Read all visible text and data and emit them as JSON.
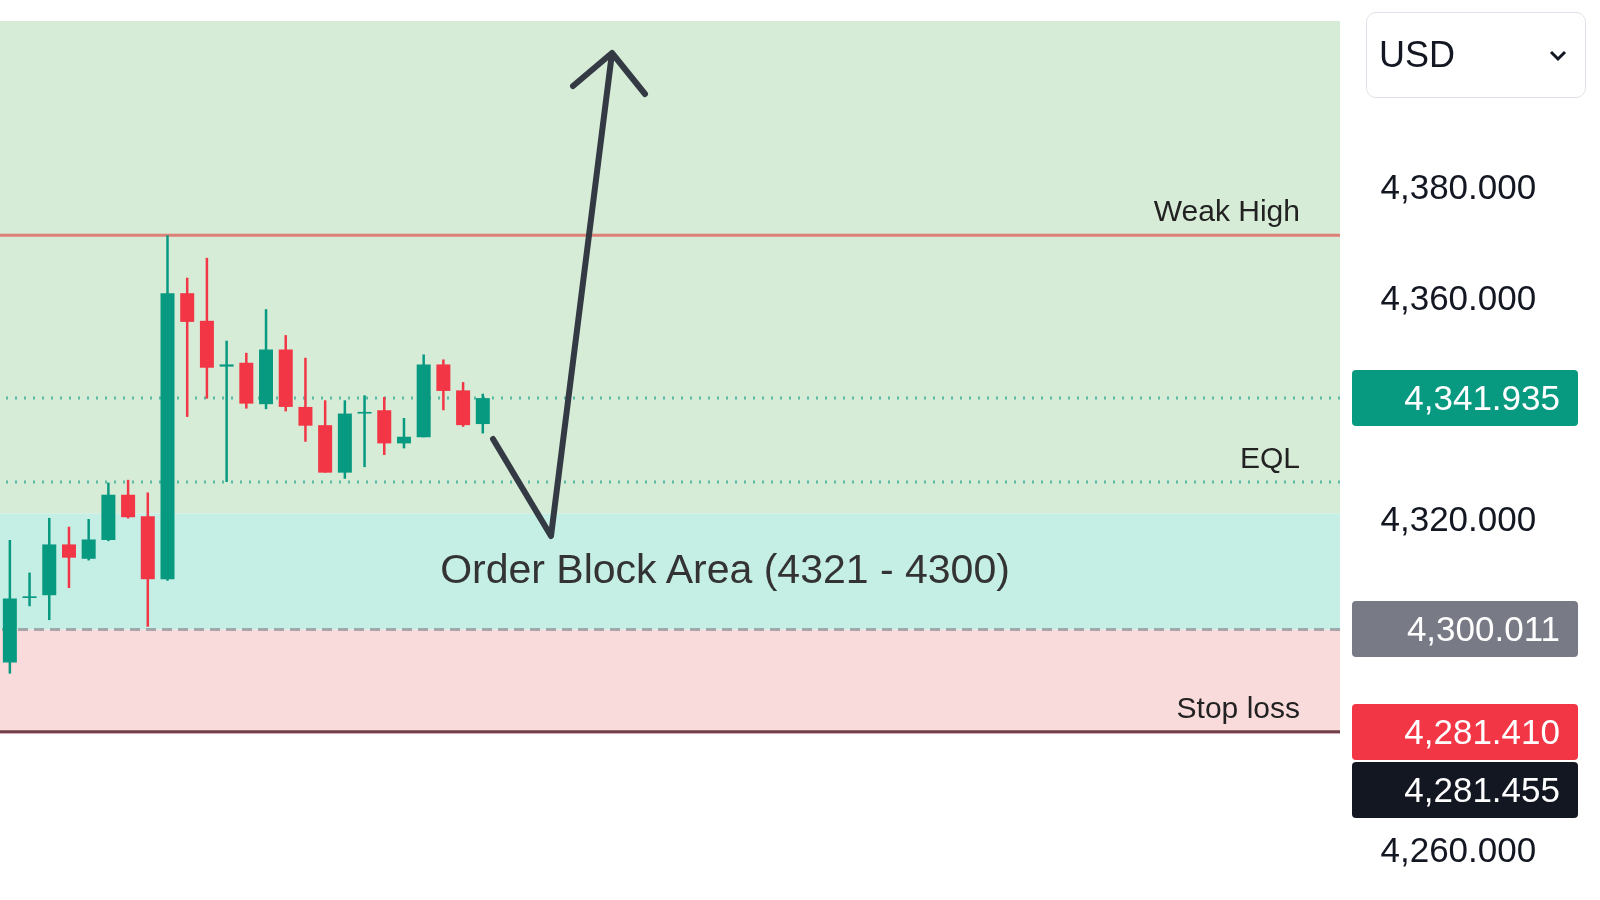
{
  "chart_data": {
    "type": "candlestick",
    "categories": [
      null,
      null,
      null,
      null,
      null,
      null,
      null,
      null,
      null,
      null,
      null,
      null,
      null,
      null,
      null,
      null,
      null,
      null,
      null,
      null,
      null,
      null,
      null,
      null,
      null,
      null,
      null,
      null,
      null,
      null,
      null,
      null,
      null,
      null,
      null,
      null,
      null,
      null,
      null,
      null,
      null,
      null,
      null,
      null,
      null,
      null,
      null,
      null,
      null,
      null,
      null,
      null,
      null,
      null,
      null,
      null,
      null,
      null,
      null,
      null,
      null,
      null,
      null,
      null,
      null,
      null,
      null,
      null
    ],
    "ohlc": [
      [
        4294.0,
        4316.2,
        4292.0,
        4305.6
      ],
      [
        4305.7,
        4310.3,
        4304.2,
        4306.0
      ],
      [
        4306.2,
        4320.2,
        4301.7,
        4315.4
      ],
      [
        4315.4,
        4318.6,
        4307.5,
        4313.0
      ],
      [
        4312.8,
        4320.0,
        4312.5,
        4316.3
      ],
      [
        4316.2,
        4326.6,
        4316.0,
        4324.4
      ],
      [
        4324.4,
        4327.1,
        4320.1,
        4320.3
      ],
      [
        4320.5,
        4324.8,
        4300.5,
        4309.1
      ],
      [
        4309.1,
        4371.4,
        4308.8,
        4360.9
      ],
      [
        4360.9,
        4363.7,
        4338.5,
        4355.7
      ],
      [
        4355.9,
        4367.3,
        4341.8,
        4347.4
      ],
      [
        4347.6,
        4352.3,
        4326.7,
        4348.0
      ],
      [
        4348.3,
        4350.1,
        4340.0,
        4340.9
      ],
      [
        4340.8,
        4358.0,
        4339.9,
        4350.7
      ],
      [
        4350.7,
        4353.3,
        4339.5,
        4340.3
      ],
      [
        4340.3,
        4349.2,
        4334.0,
        4336.9
      ],
      [
        4337.0,
        4341.5,
        4328.4,
        4328.4
      ],
      [
        4328.4,
        4341.5,
        4327.3,
        4339.1
      ],
      [
        4339.1,
        4342.4,
        4329.4,
        4339.4
      ],
      [
        4339.7,
        4342.1,
        4331.6,
        4333.7
      ],
      [
        4333.7,
        4338.3,
        4332.8,
        4334.9
      ],
      [
        4334.8,
        4349.8,
        4334.8,
        4348.0
      ],
      [
        4348.0,
        4348.9,
        4339.7,
        4343.2
      ],
      [
        4343.3,
        4344.8,
        4336.7,
        4337.0
      ],
      [
        4337.2,
        4342.7,
        4335.5,
        4341.9
      ],
      null,
      null,
      null,
      null,
      null,
      null,
      null,
      null,
      null,
      null,
      null,
      null,
      null,
      null,
      null,
      null,
      null,
      null,
      null,
      null,
      null,
      null,
      null,
      null,
      null,
      null,
      null,
      null,
      null,
      null,
      null,
      null,
      null,
      null,
      null,
      null,
      null,
      null,
      null,
      null,
      null,
      null,
      null
    ],
    "colors": [
      "#089981",
      "#089981",
      "#089981",
      "#f23645",
      "#089981",
      "#089981",
      "#f23645",
      "#f23645",
      "#089981",
      "#f23645",
      "#f23645",
      "#089981",
      "#f23645",
      "#089981",
      "#f23645",
      "#f23645",
      "#f23645",
      "#089981",
      "#089981",
      "#f23645",
      "#089981",
      "#089981",
      "#f23645",
      "#f23645",
      "#089981",
      null,
      null,
      null,
      null,
      null,
      null,
      null,
      null,
      null,
      null,
      null,
      null,
      null,
      null,
      null,
      null,
      null,
      null,
      null,
      null,
      null,
      null,
      null,
      null,
      null,
      null,
      null,
      null,
      null,
      null,
      null,
      null,
      null,
      null,
      null,
      null,
      null,
      null,
      null,
      null,
      null,
      null,
      null
    ],
    "ylim": [
      4251,
      4414
    ],
    "yticks": [
      {
        "value": 4260,
        "label": "4,260.000"
      },
      {
        "value": 4320,
        "label": "4,320.000"
      },
      {
        "value": 4360,
        "label": "4,360.000"
      },
      {
        "value": 4380,
        "label": "4,380.000"
      }
    ],
    "bands": [
      {
        "axis": "y",
        "from": 4321,
        "to": 4410.2,
        "label": null,
        "color": "#c8e6c9"
      },
      {
        "axis": "y",
        "from": 4281.455,
        "to": 4300,
        "label": null,
        "color": "#f8cfd0"
      },
      {
        "axis": "y",
        "from": 4300,
        "to": 4321,
        "label": "Order Block Area (4321 - 4300)",
        "color": "#b2e8dc"
      }
    ],
    "ref_lines": [
      {
        "axis": "y",
        "value": 4371.4,
        "label": null,
        "color": "#e53935",
        "line_style": "solid"
      },
      {
        "axis": "y",
        "value": 4326.7,
        "label": null,
        "color": "#089981",
        "line_style": "dotted"
      },
      {
        "axis": "y",
        "value": 4341.935,
        "label": "4,341.935",
        "color": "#089981",
        "line_style": "dotted"
      },
      {
        "axis": "y",
        "value": 4300.011,
        "label": "4,300.011",
        "color": "#787b86",
        "line_style": "dashed"
      },
      {
        "axis": "y",
        "value": 4281.41,
        "label": "4,281.410",
        "color": "#f23645",
        "line_style": "solid"
      },
      {
        "axis": "y",
        "value": 4281.455,
        "label": "4,281.455",
        "color": "#131722",
        "line_style": "solid"
      }
    ],
    "annotations": [
      "USD",
      {
        "text": "Weak High",
        "y": 4371.4
      },
      {
        "text": "EQL",
        "y": 4326.7
      },
      {
        "text": "Stop loss",
        "y": 4281.455
      }
    ]
  }
}
